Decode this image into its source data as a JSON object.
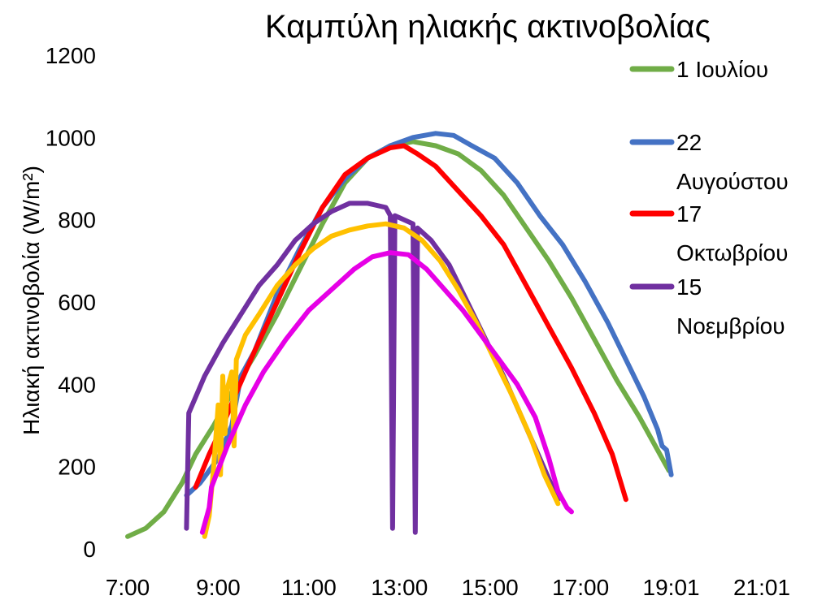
{
  "chart_data": {
    "type": "line",
    "title": "Καμπύλη ηλιακής ακτινοβολίας",
    "xlabel": "",
    "ylabel": "Ηλιακή ακτινοβολία (W/m²)",
    "x_ticks": [
      "7:00",
      "9:00",
      "11:00",
      "13:00",
      "15:00",
      "17:00",
      "19:01",
      "21:01"
    ],
    "y_ticks": [
      0,
      200,
      400,
      600,
      800,
      1000,
      1200
    ],
    "xlim": [
      7.0,
      21.0
    ],
    "ylim": [
      0,
      1200
    ],
    "grid": false,
    "legend_position": "right",
    "series": [
      {
        "name": "1 Ιουλίου",
        "color": "#70ad47",
        "points": [
          [
            7.0,
            30
          ],
          [
            7.4,
            50
          ],
          [
            7.8,
            90
          ],
          [
            8.2,
            160
          ],
          [
            8.5,
            230
          ],
          [
            8.9,
            300
          ],
          [
            9.3,
            380
          ],
          [
            9.8,
            470
          ],
          [
            10.3,
            570
          ],
          [
            10.8,
            680
          ],
          [
            11.3,
            790
          ],
          [
            11.8,
            890
          ],
          [
            12.3,
            950
          ],
          [
            12.8,
            980
          ],
          [
            13.3,
            990
          ],
          [
            13.8,
            980
          ],
          [
            14.3,
            960
          ],
          [
            14.8,
            920
          ],
          [
            15.3,
            860
          ],
          [
            15.8,
            780
          ],
          [
            16.3,
            700
          ],
          [
            16.8,
            610
          ],
          [
            17.3,
            510
          ],
          [
            17.8,
            410
          ],
          [
            18.3,
            320
          ],
          [
            18.7,
            240
          ],
          [
            18.95,
            190
          ]
        ]
      },
      {
        "name": "22 Αυγούστου",
        "color": "#4472c4",
        "points": [
          [
            8.3,
            130
          ],
          [
            8.6,
            160
          ],
          [
            9.0,
            220
          ],
          [
            9.3,
            300
          ],
          [
            9.5,
            420
          ],
          [
            9.8,
            480
          ],
          [
            10.3,
            620
          ],
          [
            10.8,
            730
          ],
          [
            11.3,
            830
          ],
          [
            11.8,
            900
          ],
          [
            12.3,
            950
          ],
          [
            12.8,
            980
          ],
          [
            13.3,
            1000
          ],
          [
            13.8,
            1010
          ],
          [
            14.2,
            1005
          ],
          [
            14.6,
            980
          ],
          [
            15.1,
            950
          ],
          [
            15.6,
            890
          ],
          [
            16.1,
            810
          ],
          [
            16.6,
            740
          ],
          [
            17.1,
            650
          ],
          [
            17.6,
            550
          ],
          [
            18.0,
            460
          ],
          [
            18.4,
            370
          ],
          [
            18.7,
            290
          ],
          [
            18.8,
            250
          ],
          [
            18.9,
            240
          ],
          [
            19.0,
            180
          ]
        ]
      },
      {
        "name": "17 Οκτωβρίου",
        "color": "#ff0000",
        "points": [
          [
            8.5,
            150
          ],
          [
            8.8,
            230
          ],
          [
            9.1,
            300
          ],
          [
            9.4,
            380
          ],
          [
            9.8,
            480
          ],
          [
            10.3,
            600
          ],
          [
            10.8,
            720
          ],
          [
            11.3,
            830
          ],
          [
            11.8,
            910
          ],
          [
            12.3,
            950
          ],
          [
            12.8,
            975
          ],
          [
            13.1,
            980
          ],
          [
            13.4,
            960
          ],
          [
            13.8,
            930
          ],
          [
            14.3,
            870
          ],
          [
            14.8,
            810
          ],
          [
            15.3,
            740
          ],
          [
            15.8,
            640
          ],
          [
            16.3,
            540
          ],
          [
            16.8,
            440
          ],
          [
            17.3,
            330
          ],
          [
            17.7,
            230
          ],
          [
            18.0,
            120
          ]
        ]
      },
      {
        "name": "15 Νοεμβρίου",
        "color": "#7030a0",
        "points": [
          [
            8.3,
            50
          ],
          [
            8.35,
            330
          ],
          [
            8.7,
            420
          ],
          [
            9.1,
            500
          ],
          [
            9.5,
            570
          ],
          [
            9.9,
            640
          ],
          [
            10.3,
            690
          ],
          [
            10.7,
            750
          ],
          [
            11.1,
            790
          ],
          [
            11.5,
            820
          ],
          [
            11.9,
            840
          ],
          [
            12.3,
            840
          ],
          [
            12.7,
            830
          ],
          [
            12.8,
            810
          ],
          [
            12.85,
            50
          ],
          [
            12.9,
            810
          ],
          [
            13.0,
            805
          ],
          [
            13.3,
            790
          ],
          [
            13.35,
            40
          ],
          [
            13.4,
            780
          ],
          [
            13.7,
            750
          ],
          [
            14.1,
            690
          ],
          [
            14.5,
            600
          ],
          [
            14.9,
            510
          ],
          [
            15.3,
            420
          ],
          [
            15.7,
            320
          ],
          [
            16.1,
            220
          ],
          [
            16.5,
            120
          ]
        ]
      },
      {
        "name": "",
        "color": "#ffc000",
        "points": [
          [
            8.7,
            30
          ],
          [
            8.8,
            80
          ],
          [
            8.9,
            200
          ],
          [
            9.0,
            350
          ],
          [
            9.05,
            180
          ],
          [
            9.1,
            420
          ],
          [
            9.15,
            280
          ],
          [
            9.2,
            390
          ],
          [
            9.3,
            430
          ],
          [
            9.35,
            250
          ],
          [
            9.4,
            460
          ],
          [
            9.6,
            520
          ],
          [
            9.9,
            570
          ],
          [
            10.3,
            640
          ],
          [
            10.7,
            690
          ],
          [
            11.1,
            730
          ],
          [
            11.5,
            760
          ],
          [
            11.9,
            775
          ],
          [
            12.3,
            785
          ],
          [
            12.7,
            790
          ],
          [
            13.1,
            780
          ],
          [
            13.5,
            750
          ],
          [
            13.9,
            700
          ],
          [
            14.3,
            630
          ],
          [
            14.7,
            550
          ],
          [
            15.1,
            460
          ],
          [
            15.5,
            370
          ],
          [
            15.9,
            270
          ],
          [
            16.2,
            180
          ],
          [
            16.5,
            110
          ]
        ]
      },
      {
        "name": "",
        "color": "#e600e6",
        "points": [
          [
            8.65,
            40
          ],
          [
            8.75,
            80
          ],
          [
            8.8,
            100
          ],
          [
            8.85,
            150
          ],
          [
            9.2,
            250
          ],
          [
            9.6,
            350
          ],
          [
            10.0,
            430
          ],
          [
            10.5,
            510
          ],
          [
            11.0,
            580
          ],
          [
            11.5,
            630
          ],
          [
            12.0,
            680
          ],
          [
            12.4,
            710
          ],
          [
            12.8,
            720
          ],
          [
            13.2,
            715
          ],
          [
            13.6,
            680
          ],
          [
            14.0,
            630
          ],
          [
            14.4,
            580
          ],
          [
            14.8,
            520
          ],
          [
            15.2,
            460
          ],
          [
            15.6,
            400
          ],
          [
            16.0,
            320
          ],
          [
            16.3,
            220
          ],
          [
            16.5,
            140
          ],
          [
            16.7,
            100
          ],
          [
            16.8,
            90
          ]
        ]
      }
    ]
  }
}
